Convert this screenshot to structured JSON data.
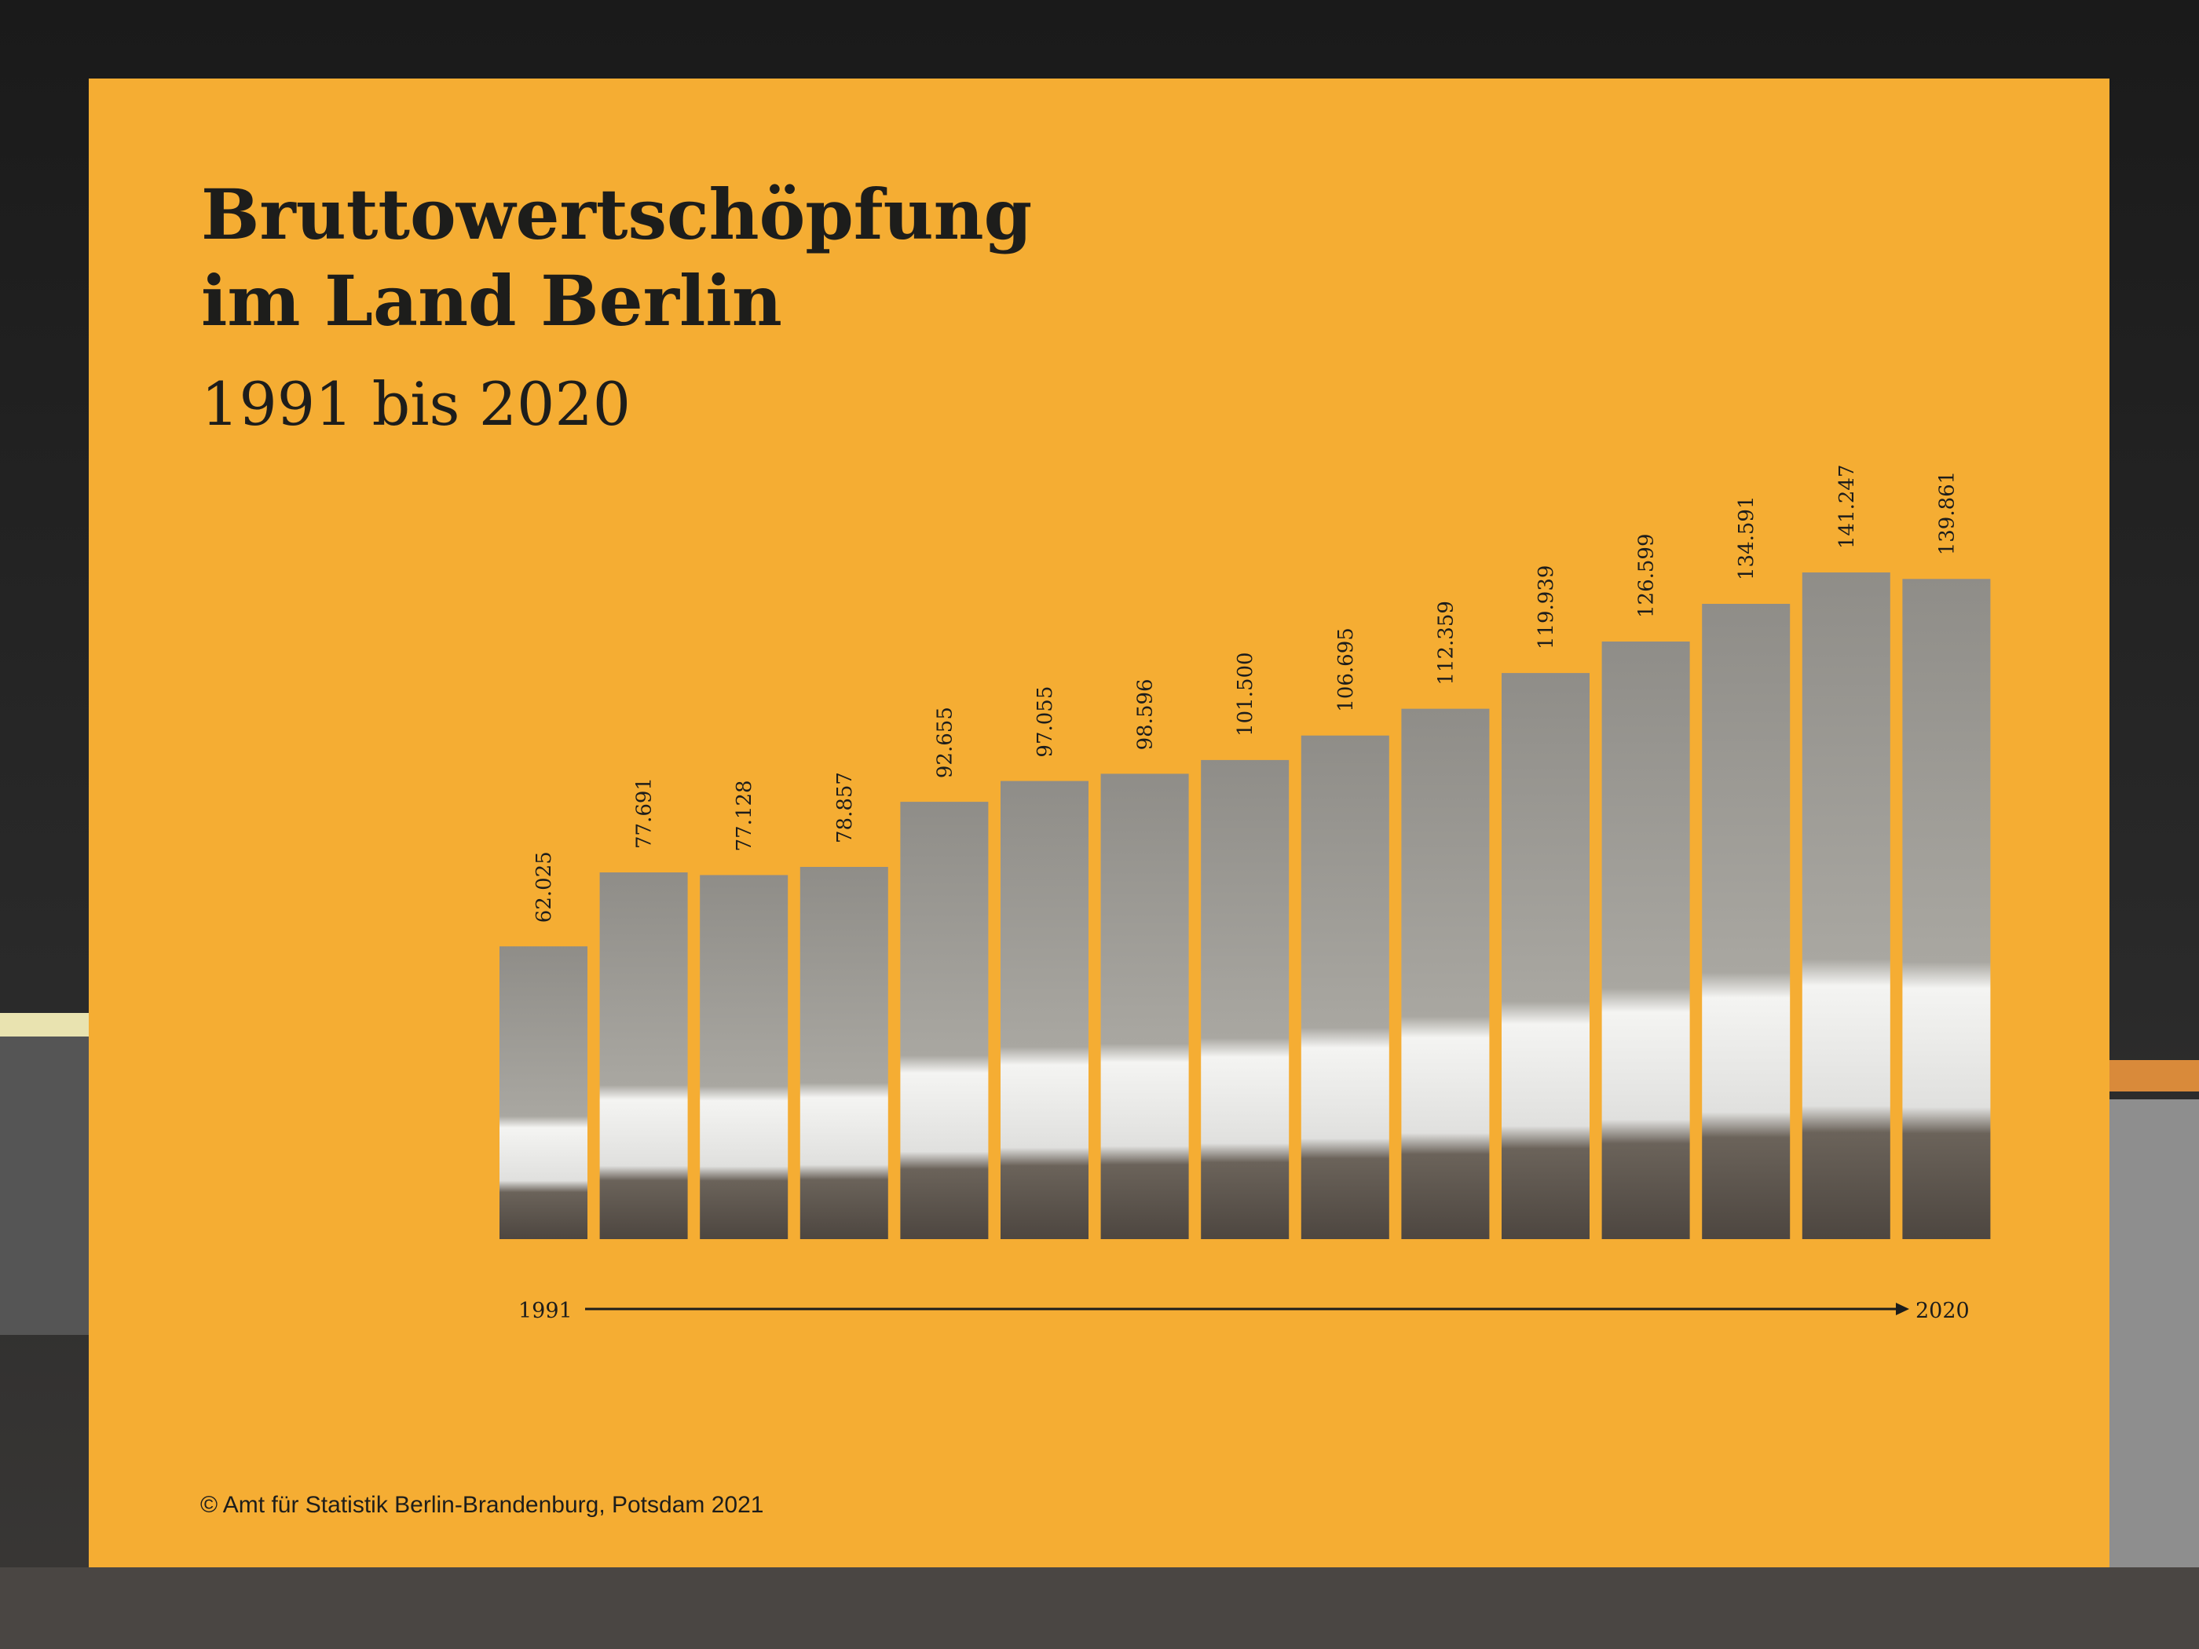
{
  "header": {
    "title_line1": "Bruttowertschöpfung",
    "title_line2": "im Land Berlin",
    "subtitle": "1991 bis 2020"
  },
  "footer": {
    "copyright": "© Amt für Statistik Berlin-Brandenburg, Potsdam 2021"
  },
  "colors": {
    "panel": "#f5ad33",
    "text": "#1d1d1b",
    "backdrop": "#141414"
  },
  "chart_data": {
    "type": "bar",
    "title": "Bruttowertschöpfung im Land Berlin",
    "subtitle": "1991 bis 2020",
    "values": [
      62025,
      77691,
      77128,
      78857,
      92655,
      97055,
      98596,
      101500,
      106695,
      112359,
      119939,
      126599,
      134591,
      141247,
      139861
    ],
    "value_labels": [
      "62.025",
      "77.691",
      "77.128",
      "78.857",
      "92.655",
      "97.055",
      "98.596",
      "101.500",
      "106.695",
      "112.359",
      "119.939",
      "126.599",
      "134.591",
      "141.247",
      "139.861"
    ],
    "x_start_label": "1991",
    "x_end_label": "2020",
    "xlabel": "",
    "ylabel": "",
    "ylim": [
      0,
      141247
    ],
    "grid": false,
    "legend": "none"
  }
}
